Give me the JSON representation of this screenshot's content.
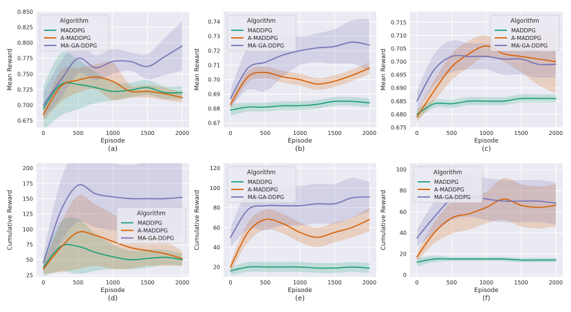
{
  "figure": {
    "title": ""
  },
  "chart_data": [
    {
      "type": "line",
      "caption": "(a)",
      "xlabel": "Episode",
      "ylabel": "Mean Reward",
      "xlim": [
        -100,
        2100
      ],
      "ylim": [
        0.664,
        0.85
      ],
      "xticks": [
        "0",
        "500",
        "1000",
        "1500",
        "2000"
      ],
      "yticks": [
        "0.675",
        "0.700",
        "0.725",
        "0.750",
        "0.775",
        "0.800",
        "0.825",
        "0.850"
      ],
      "legend": {
        "title": "Algorithm",
        "position": "top-left"
      },
      "x": [
        0,
        250,
        500,
        750,
        1000,
        1250,
        1500,
        1750,
        2000
      ],
      "series": [
        {
          "name": "MADDPG",
          "color": "#1b9e77",
          "values": [
            0.695,
            0.733,
            0.733,
            0.728,
            0.722,
            0.724,
            0.728,
            0.72,
            0.72
          ],
          "band": [
            0.035,
            0.05,
            0.04,
            0.025,
            0.015,
            0.012,
            0.012,
            0.01,
            0.01
          ]
        },
        {
          "name": "A-MADDPG",
          "color": "#d95f02",
          "values": [
            0.685,
            0.73,
            0.74,
            0.745,
            0.738,
            0.722,
            0.722,
            0.718,
            0.712
          ],
          "band": [
            0.01,
            0.025,
            0.02,
            0.02,
            0.03,
            0.01,
            0.01,
            0.01,
            0.008
          ]
        },
        {
          "name": "MA-GA-DDPG",
          "color": "#7570b3",
          "values": [
            0.7,
            0.74,
            0.775,
            0.76,
            0.77,
            0.77,
            0.762,
            0.778,
            0.795
          ],
          "band": [
            0.02,
            0.03,
            0.025,
            0.02,
            0.02,
            0.015,
            0.02,
            0.03,
            0.04
          ]
        }
      ]
    },
    {
      "type": "line",
      "caption": "(b)",
      "xlabel": "Episode",
      "ylabel": "Mean Reward",
      "xlim": [
        -100,
        2100
      ],
      "ylim": [
        0.667,
        0.747
      ],
      "xticks": [
        "0",
        "500",
        "1000",
        "1500",
        "2000"
      ],
      "yticks": [
        "0.67",
        "0.68",
        "0.69",
        "0.70",
        "0.71",
        "0.72",
        "0.73",
        "0.74"
      ],
      "legend": {
        "title": "Algorithm",
        "position": "top-left"
      },
      "x": [
        0,
        250,
        500,
        750,
        1000,
        1250,
        1500,
        1750,
        2000
      ],
      "series": [
        {
          "name": "MADDPG",
          "color": "#1b9e77",
          "values": [
            0.679,
            0.681,
            0.681,
            0.682,
            0.682,
            0.683,
            0.685,
            0.685,
            0.684
          ],
          "band": [
            0.004,
            0.003,
            0.003,
            0.003,
            0.003,
            0.003,
            0.003,
            0.003,
            0.003
          ]
        },
        {
          "name": "A-MADDPG",
          "color": "#d95f02",
          "values": [
            0.683,
            0.702,
            0.705,
            0.702,
            0.7,
            0.697,
            0.699,
            0.703,
            0.708
          ],
          "band": [
            0.003,
            0.004,
            0.004,
            0.004,
            0.004,
            0.004,
            0.004,
            0.004,
            0.004
          ]
        },
        {
          "name": "MA-GA-DDPG",
          "color": "#7570b3",
          "values": [
            0.687,
            0.708,
            0.712,
            0.717,
            0.72,
            0.722,
            0.723,
            0.726,
            0.724
          ],
          "band": [
            0.006,
            0.015,
            0.02,
            0.015,
            0.01,
            0.01,
            0.012,
            0.015,
            0.018
          ]
        }
      ]
    },
    {
      "type": "line",
      "caption": "(c)",
      "xlabel": "Episode",
      "ylabel": "Mean Reward",
      "xlim": [
        -100,
        2100
      ],
      "ylim": [
        0.675,
        0.719
      ],
      "xticks": [
        "0",
        "500",
        "1000",
        "1500",
        "2000"
      ],
      "yticks": [
        "0.675",
        "0.680",
        "0.685",
        "0.690",
        "0.695",
        "0.700",
        "0.705",
        "0.710",
        "0.715"
      ],
      "legend": {
        "title": "Algorithm",
        "position": "top-right"
      },
      "x": [
        0,
        250,
        500,
        750,
        1000,
        1250,
        1500,
        1750,
        2000
      ],
      "series": [
        {
          "name": "MADDPG",
          "color": "#1b9e77",
          "values": [
            0.68,
            0.684,
            0.684,
            0.685,
            0.685,
            0.685,
            0.686,
            0.686,
            0.686
          ],
          "band": [
            0.002,
            0.0015,
            0.0015,
            0.0015,
            0.0015,
            0.0015,
            0.0015,
            0.0015,
            0.0015
          ]
        },
        {
          "name": "A-MADDPG",
          "color": "#d95f02",
          "values": [
            0.679,
            0.689,
            0.698,
            0.703,
            0.706,
            0.703,
            0.702,
            0.701,
            0.7
          ],
          "band": [
            0.002,
            0.004,
            0.005,
            0.005,
            0.004,
            0.003,
            0.006,
            0.01,
            0.012
          ]
        },
        {
          "name": "MA-GA-DDPG",
          "color": "#7570b3",
          "values": [
            0.685,
            0.697,
            0.702,
            0.702,
            0.702,
            0.701,
            0.701,
            0.699,
            0.699
          ],
          "band": [
            0.004,
            0.006,
            0.006,
            0.005,
            0.005,
            0.006,
            0.006,
            0.005,
            0.005
          ]
        }
      ]
    },
    {
      "type": "line",
      "caption": "(d)",
      "xlabel": "Episode",
      "ylabel": "Cumulative Reward",
      "xlim": [
        -100,
        2100
      ],
      "ylim": [
        22,
        208
      ],
      "xticks": [
        "0",
        "500",
        "1000",
        "1500",
        "2000"
      ],
      "yticks": [
        "25",
        "50",
        "75",
        "100",
        "125",
        "150",
        "175",
        "200"
      ],
      "legend": {
        "title": "Algorithm",
        "position": "center-right"
      },
      "x": [
        0,
        250,
        500,
        750,
        1000,
        1250,
        1500,
        1750,
        2000
      ],
      "series": [
        {
          "name": "MADDPG",
          "color": "#1b9e77",
          "values": [
            38,
            72,
            72,
            62,
            55,
            50,
            52,
            54,
            50
          ],
          "band": [
            15,
            40,
            45,
            30,
            20,
            15,
            15,
            12,
            10
          ]
        },
        {
          "name": "A-MADDPG",
          "color": "#d95f02",
          "values": [
            35,
            70,
            95,
            90,
            80,
            70,
            65,
            60,
            52
          ],
          "band": [
            8,
            40,
            60,
            50,
            45,
            35,
            25,
            20,
            12
          ]
        },
        {
          "name": "MA-GA-DDPG",
          "color": "#7570b3",
          "values": [
            45,
            130,
            172,
            158,
            153,
            150,
            150,
            150,
            152
          ],
          "band": [
            15,
            50,
            60,
            55,
            55,
            55,
            60,
            60,
            60
          ]
        }
      ]
    },
    {
      "type": "line",
      "caption": "(e)",
      "xlabel": "Episode",
      "ylabel": "Cumulative Reward",
      "xlim": [
        -100,
        2100
      ],
      "ylim": [
        10,
        125
      ],
      "xticks": [
        "0",
        "500",
        "1000",
        "1500",
        "2000"
      ],
      "yticks": [
        "20",
        "40",
        "60",
        "80",
        "100",
        "120"
      ],
      "legend": {
        "title": "Algorithm",
        "position": "top-left"
      },
      "x": [
        0,
        250,
        500,
        750,
        1000,
        1250,
        1500,
        1750,
        2000
      ],
      "series": [
        {
          "name": "MADDPG",
          "color": "#1b9e77",
          "values": [
            16,
            20,
            20,
            20,
            20,
            19,
            19,
            20,
            19
          ],
          "band": [
            4,
            5,
            5,
            5,
            5,
            5,
            5,
            5,
            5
          ]
        },
        {
          "name": "A-MADDPG",
          "color": "#d95f02",
          "values": [
            20,
            55,
            68,
            64,
            55,
            50,
            55,
            60,
            68
          ],
          "band": [
            5,
            10,
            10,
            10,
            10,
            10,
            10,
            10,
            12
          ]
        },
        {
          "name": "MA-GA-DDPG",
          "color": "#7570b3",
          "values": [
            50,
            78,
            82,
            82,
            82,
            84,
            84,
            90,
            91
          ],
          "band": [
            10,
            20,
            25,
            20,
            20,
            20,
            20,
            20,
            15
          ]
        }
      ]
    },
    {
      "type": "line",
      "caption": "(f)",
      "xlabel": "Episode",
      "ylabel": "Cumulative Reward",
      "xlim": [
        -100,
        2100
      ],
      "ylim": [
        -2,
        106
      ],
      "xticks": [
        "0",
        "500",
        "1000",
        "1500",
        "2000"
      ],
      "yticks": [
        "0",
        "20",
        "40",
        "60",
        "80",
        "100"
      ],
      "legend": {
        "title": "Algorithm",
        "position": "top-left"
      },
      "x": [
        0,
        250,
        500,
        750,
        1000,
        1250,
        1500,
        1750,
        2000
      ],
      "series": [
        {
          "name": "MADDPG",
          "color": "#1b9e77",
          "values": [
            12,
            15,
            15,
            15,
            15,
            15,
            14,
            14,
            14
          ],
          "band": [
            4,
            3,
            2,
            2,
            2,
            2,
            2,
            2,
            2
          ]
        },
        {
          "name": "A-MADDPG",
          "color": "#d95f02",
          "values": [
            17,
            40,
            54,
            58,
            64,
            72,
            66,
            64,
            66
          ],
          "band": [
            4,
            10,
            15,
            15,
            15,
            20,
            20,
            20,
            20
          ]
        },
        {
          "name": "MA-GA-DDPG",
          "color": "#7570b3",
          "values": [
            35,
            55,
            72,
            75,
            72,
            70,
            70,
            70,
            68
          ],
          "band": [
            8,
            15,
            20,
            20,
            20,
            20,
            20,
            20,
            20
          ]
        }
      ]
    }
  ]
}
